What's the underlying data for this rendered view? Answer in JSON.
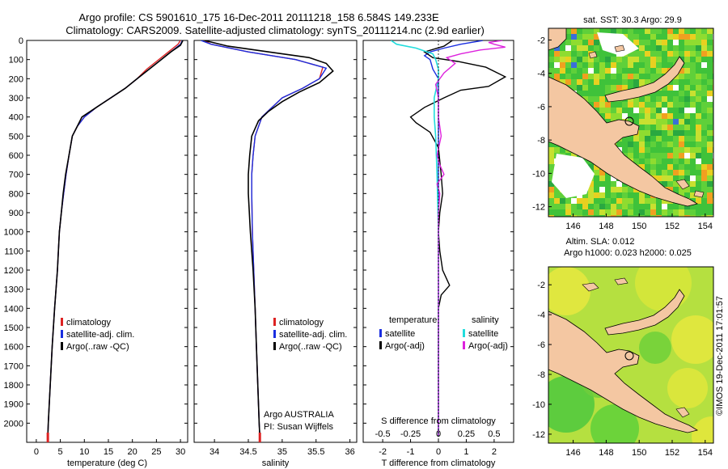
{
  "header": {
    "line1": "Argo profile: CS 5901610_175 16-Dec-2011 20111218_158 6.584S 149.233E",
    "line2": "Climatology: CARS2009. Satellite-adjusted climatology: synTS_20111214.nc (2.9d earlier)"
  },
  "credit": "©IMOS 19-Dec-2011 17:01:57",
  "colors": {
    "climatology": "#dd2222",
    "satellite": "#1a2ee0",
    "argo": "#000000",
    "sal_satellite": "#22dddd",
    "sal_argo": "#dd22dd",
    "land": "#f4c7a2"
  },
  "chart_data": [
    {
      "type": "line",
      "id": "temperature",
      "xlabel": "temperature (deg C)",
      "ylabel": "",
      "xlim": [
        -2,
        31.5
      ],
      "ylim": [
        2100,
        0
      ],
      "y_reversed": true,
      "xticks": [
        0,
        5,
        10,
        15,
        20,
        25,
        30
      ],
      "yticks": [
        0,
        100,
        200,
        300,
        400,
        500,
        600,
        700,
        800,
        900,
        1000,
        1100,
        1200,
        1300,
        1400,
        1500,
        1600,
        1700,
        1800,
        1900,
        2000
      ],
      "legend": [
        "climatology",
        "satellite-adj. clim.",
        "Argo(..raw -QC)"
      ],
      "series": [
        {
          "name": "climatology",
          "color": "#dd2222",
          "points": [
            [
              30.0,
              0
            ],
            [
              29.5,
              20
            ],
            [
              28,
              50
            ],
            [
              26.5,
              80
            ],
            [
              25,
              110
            ],
            [
              23,
              150
            ],
            [
              21,
              200
            ],
            [
              18.5,
              250
            ],
            [
              15.5,
              300
            ],
            [
              12.5,
              350
            ],
            [
              10,
              400
            ],
            [
              8.5,
              450
            ],
            [
              7.5,
              500
            ],
            [
              6.8,
              600
            ],
            [
              6.2,
              700
            ],
            [
              5.7,
              800
            ],
            [
              5.2,
              900
            ],
            [
              4.8,
              1000
            ],
            [
              4.4,
              1200
            ],
            [
              3.8,
              1400
            ],
            [
              3.3,
              1600
            ],
            [
              2.9,
              1800
            ],
            [
              2.5,
              2000
            ],
            [
              2.4,
              2070
            ]
          ]
        },
        {
          "name": "satellite-adj. clim.",
          "color": "#1a2ee0",
          "points": [
            [
              30.4,
              0
            ],
            [
              30,
              20
            ],
            [
              28.5,
              50
            ],
            [
              27,
              80
            ],
            [
              25.5,
              110
            ],
            [
              23.5,
              150
            ],
            [
              21,
              200
            ],
            [
              18.5,
              250
            ],
            [
              15.5,
              300
            ],
            [
              12.5,
              350
            ],
            [
              10,
              400
            ],
            [
              8.5,
              450
            ],
            [
              7.5,
              500
            ],
            [
              6.8,
              600
            ],
            [
              6.2,
              700
            ],
            [
              5.7,
              800
            ],
            [
              5.2,
              900
            ],
            [
              4.8,
              1000
            ],
            [
              4.4,
              1200
            ],
            [
              3.8,
              1400
            ],
            [
              3.3,
              1600
            ],
            [
              2.9,
              1800
            ],
            [
              2.5,
              2000
            ],
            [
              2.4,
              2070
            ]
          ]
        },
        {
          "name": "Argo(..raw -QC)",
          "color": "#000000",
          "points": [
            [
              30.5,
              0
            ],
            [
              30,
              25
            ],
            [
              28,
              60
            ],
            [
              26,
              100
            ],
            [
              23.5,
              150
            ],
            [
              21,
              200
            ],
            [
              18.5,
              250
            ],
            [
              15.5,
              300
            ],
            [
              12.5,
              350
            ],
            [
              9.5,
              400
            ],
            [
              8.5,
              450
            ],
            [
              7.5,
              500
            ],
            [
              6.8,
              600
            ],
            [
              6.1,
              700
            ],
            [
              5.6,
              800
            ],
            [
              5.2,
              900
            ],
            [
              4.8,
              1000
            ],
            [
              4.4,
              1200
            ],
            [
              3.8,
              1400
            ],
            [
              3.3,
              1600
            ],
            [
              2.9,
              1800
            ],
            [
              2.5,
              2000
            ],
            [
              2.4,
              2070
            ]
          ]
        }
      ]
    },
    {
      "type": "line",
      "id": "salinity",
      "xlabel": "salinity",
      "xlim": [
        33.7,
        36.1
      ],
      "ylim": [
        2100,
        0
      ],
      "y_reversed": true,
      "xticks": [
        34,
        34.5,
        35,
        35.5,
        36
      ],
      "legend": [
        "climatology",
        "satellite-adj. clim.",
        "Argo(..raw -QC)"
      ],
      "annotation": [
        "Argo AUSTRALIA",
        "PI: Susan Wijffels"
      ],
      "series": [
        {
          "name": "climatology",
          "color": "#dd2222",
          "points": [
            [
              33.85,
              0
            ],
            [
              33.95,
              20
            ],
            [
              34.5,
              60
            ],
            [
              35.2,
              100
            ],
            [
              35.6,
              140
            ],
            [
              35.55,
              200
            ],
            [
              35.3,
              250
            ],
            [
              35.0,
              300
            ],
            [
              34.85,
              350
            ],
            [
              34.7,
              400
            ],
            [
              34.6,
              500
            ],
            [
              34.57,
              600
            ],
            [
              34.55,
              700
            ],
            [
              34.55,
              800
            ],
            [
              34.56,
              1000
            ],
            [
              34.58,
              1200
            ],
            [
              34.6,
              1400
            ],
            [
              34.62,
              1600
            ],
            [
              34.64,
              1800
            ],
            [
              34.66,
              2000
            ],
            [
              34.67,
              2070
            ]
          ]
        },
        {
          "name": "satellite-adj. clim.",
          "color": "#1a2ee0",
          "points": [
            [
              33.8,
              0
            ],
            [
              33.95,
              20
            ],
            [
              34.5,
              60
            ],
            [
              35.2,
              100
            ],
            [
              35.65,
              145
            ],
            [
              35.55,
              200
            ],
            [
              35.3,
              250
            ],
            [
              35.0,
              300
            ],
            [
              34.85,
              350
            ],
            [
              34.7,
              400
            ],
            [
              34.6,
              500
            ],
            [
              34.57,
              600
            ],
            [
              34.55,
              700
            ],
            [
              34.55,
              800
            ],
            [
              34.56,
              1000
            ],
            [
              34.58,
              1200
            ],
            [
              34.6,
              1400
            ],
            [
              34.62,
              1600
            ],
            [
              34.64,
              1800
            ],
            [
              34.66,
              2000
            ],
            [
              34.67,
              2070
            ]
          ]
        },
        {
          "name": "Argo(..raw -QC)",
          "color": "#000000",
          "points": [
            [
              33.85,
              0
            ],
            [
              34.2,
              30
            ],
            [
              34.8,
              60
            ],
            [
              35.4,
              90
            ],
            [
              35.65,
              120
            ],
            [
              35.75,
              160
            ],
            [
              35.55,
              220
            ],
            [
              35.25,
              270
            ],
            [
              35.0,
              320
            ],
            [
              34.8,
              370
            ],
            [
              34.65,
              420
            ],
            [
              34.55,
              500
            ],
            [
              34.52,
              600
            ],
            [
              34.5,
              700
            ],
            [
              34.5,
              800
            ],
            [
              34.53,
              1000
            ],
            [
              34.57,
              1200
            ],
            [
              34.6,
              1400
            ],
            [
              34.62,
              1600
            ],
            [
              34.64,
              1800
            ],
            [
              34.66,
              2000
            ],
            [
              34.67,
              2070
            ]
          ]
        }
      ]
    },
    {
      "type": "line",
      "id": "differences",
      "xlabel": "T difference from climatology",
      "xlabel_top": "S difference from climatology",
      "xlim": [
        -2.7,
        2.7
      ],
      "ylim": [
        2100,
        0
      ],
      "y_reversed": true,
      "xticks_T": [
        -2,
        -1,
        0,
        1,
        2
      ],
      "xticks_S": [
        -0.5,
        -0.25,
        0,
        0.25,
        0.5
      ],
      "legend_titles": [
        "temperature",
        "salinity"
      ],
      "legend": [
        "satellite",
        "Argo(-adj)",
        "satellite",
        "Argo(-adj)"
      ],
      "series": [
        {
          "name": "temperature satellite",
          "color": "#1a2ee0",
          "points": [
            [
              1.6,
              0
            ],
            [
              0.8,
              20
            ],
            [
              0.2,
              40
            ],
            [
              -0.3,
              60
            ],
            [
              -0.5,
              80
            ],
            [
              -0.3,
              100
            ],
            [
              -0.2,
              150
            ],
            [
              0,
              200
            ],
            [
              0,
              300
            ],
            [
              0,
              400
            ],
            [
              0,
              500
            ],
            [
              0,
              700
            ],
            [
              0,
              1000
            ],
            [
              0,
              1500
            ],
            [
              0,
              2070
            ]
          ]
        },
        {
          "name": "temperature Argo(-adj)",
          "color": "#000000",
          "points": [
            [
              0.5,
              0
            ],
            [
              0.2,
              30
            ],
            [
              -0.5,
              60
            ],
            [
              -0.2,
              90
            ],
            [
              0.7,
              110
            ],
            [
              1.7,
              140
            ],
            [
              2.4,
              190
            ],
            [
              1.8,
              240
            ],
            [
              0.8,
              260
            ],
            [
              0.2,
              300
            ],
            [
              -0.5,
              350
            ],
            [
              -1.0,
              400
            ],
            [
              -0.8,
              430
            ],
            [
              -0.3,
              480
            ],
            [
              0,
              560
            ],
            [
              0.1,
              700
            ],
            [
              0.15,
              800
            ],
            [
              0.05,
              900
            ],
            [
              0,
              1000
            ],
            [
              0.05,
              1100
            ],
            [
              0.15,
              1200
            ],
            [
              0.4,
              1280
            ],
            [
              0.1,
              1330
            ],
            [
              0,
              1400
            ],
            [
              0,
              1600
            ],
            [
              0,
              2070
            ]
          ]
        },
        {
          "name": "salinity satellite",
          "color": "#22dddd",
          "points": [
            [
              -1.7,
              0
            ],
            [
              -1.5,
              20
            ],
            [
              -0.8,
              40
            ],
            [
              -0.2,
              70
            ],
            [
              -0.1,
              100
            ],
            [
              0,
              150
            ],
            [
              0,
              200
            ],
            [
              -0.15,
              300
            ],
            [
              -0.15,
              400
            ],
            [
              -0.1,
              500
            ],
            [
              -0.05,
              700
            ],
            [
              0,
              1000
            ],
            [
              0,
              1500
            ],
            [
              0,
              2070
            ]
          ]
        },
        {
          "name": "salinity Argo(-adj)",
          "color": "#dd22dd",
          "points": [
            [
              2.3,
              0
            ],
            [
              1.8,
              10
            ],
            [
              2.0,
              20
            ],
            [
              2.4,
              35
            ],
            [
              1.5,
              50
            ],
            [
              0.8,
              70
            ],
            [
              0.3,
              90
            ],
            [
              0.6,
              120
            ],
            [
              0.2,
              170
            ],
            [
              -0.1,
              230
            ],
            [
              0,
              300
            ],
            [
              0,
              400
            ],
            [
              0.1,
              500
            ],
            [
              -0.05,
              600
            ],
            [
              0.05,
              650
            ],
            [
              0.2,
              700
            ],
            [
              -0.05,
              750
            ],
            [
              0.05,
              800
            ],
            [
              0,
              900
            ],
            [
              0,
              1100
            ],
            [
              0,
              1500
            ],
            [
              0,
              2070
            ]
          ]
        }
      ]
    },
    {
      "type": "heatmap",
      "id": "sst-map",
      "title": "sat. SST: 30.3 Argo: 29.9",
      "xticks": [
        146,
        148,
        150,
        152,
        154
      ],
      "yticks": [
        -2,
        -4,
        -6,
        -8,
        -10,
        -12
      ],
      "xlim": [
        144.5,
        154.5
      ],
      "ylim": [
        -12.6,
        -1.3
      ],
      "marker": {
        "lon": 149.233,
        "lat": -6.584
      }
    },
    {
      "type": "heatmap",
      "id": "sla-map",
      "title_lines": [
        "Altim. SLA: 0.012",
        "Argo h1000: 0.023 h2000: 0.025"
      ],
      "xticks": [
        146,
        148,
        150,
        152,
        154
      ],
      "yticks": [
        -2,
        -4,
        -6,
        -8,
        -10,
        -12
      ],
      "xlim": [
        144.5,
        154.5
      ],
      "ylim": [
        -12.6,
        -0.8
      ],
      "marker": {
        "lon": 149.233,
        "lat": -6.584
      }
    }
  ]
}
